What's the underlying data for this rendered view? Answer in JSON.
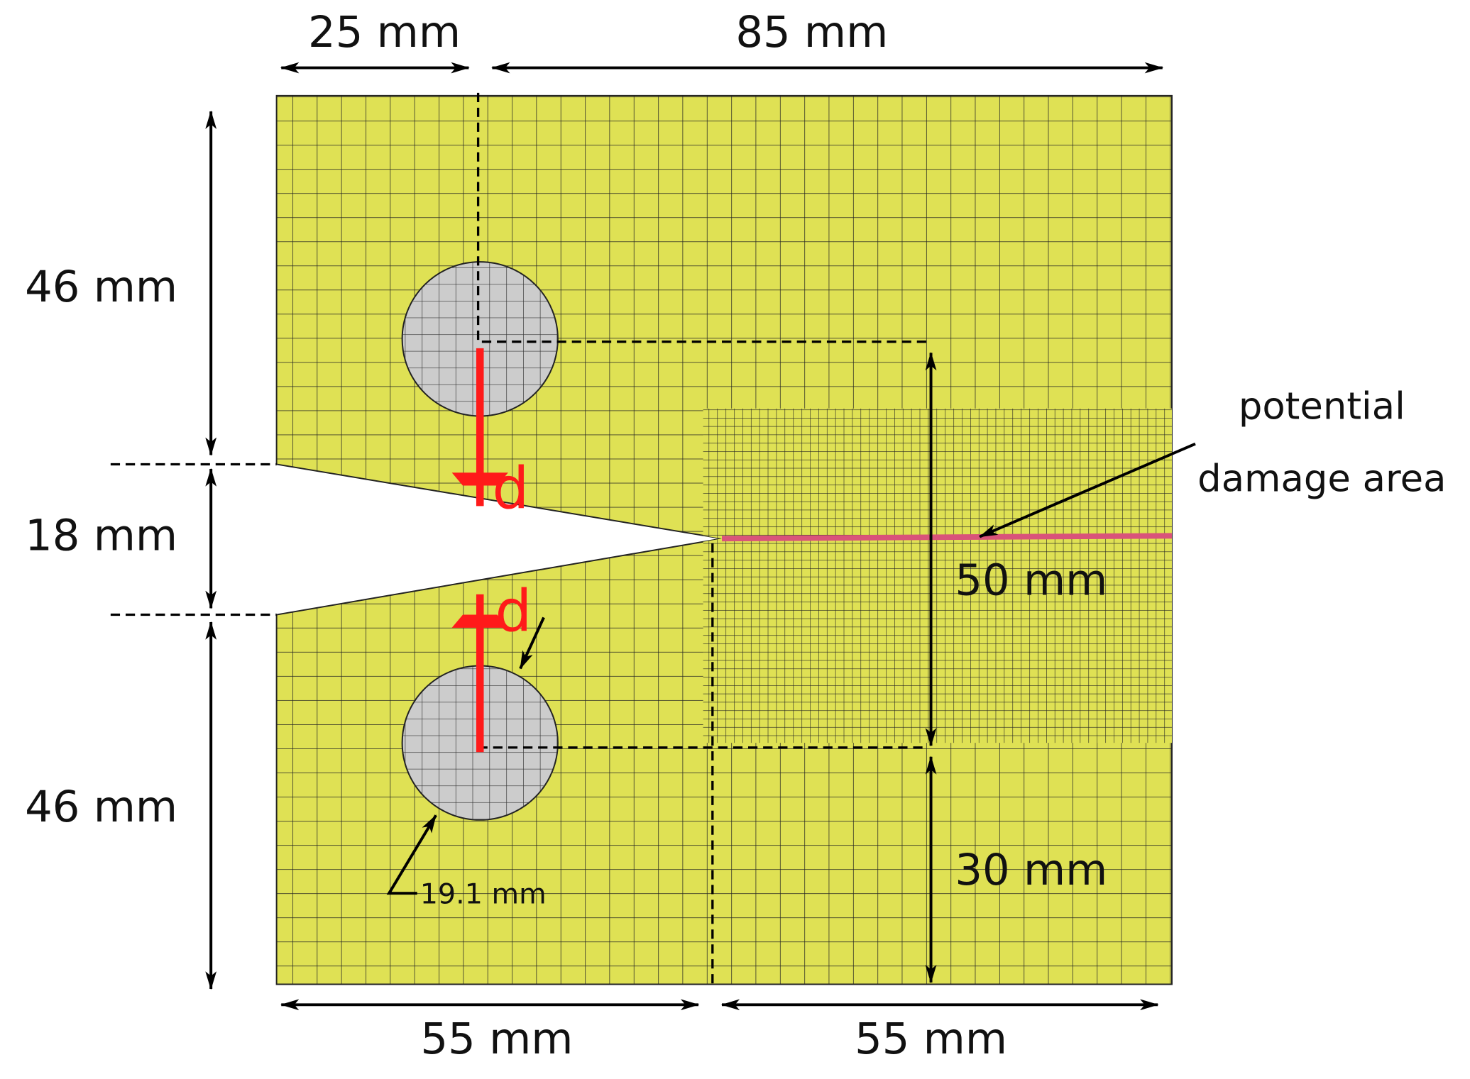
{
  "dimensions": {
    "top_left": "25 mm",
    "top_right": "85 mm",
    "left_upper": "46 mm",
    "left_notch": "18 mm",
    "left_lower": "46 mm",
    "bottom_left": "55 mm",
    "bottom_right": "55 mm",
    "inner_height": "50 mm",
    "inner_bottom": "30 mm",
    "hole_diameter": "19.1 mm"
  },
  "annotation": {
    "line1": "potential",
    "line2": "damage area"
  },
  "loads": {
    "upper": "d",
    "lower": "d"
  }
}
